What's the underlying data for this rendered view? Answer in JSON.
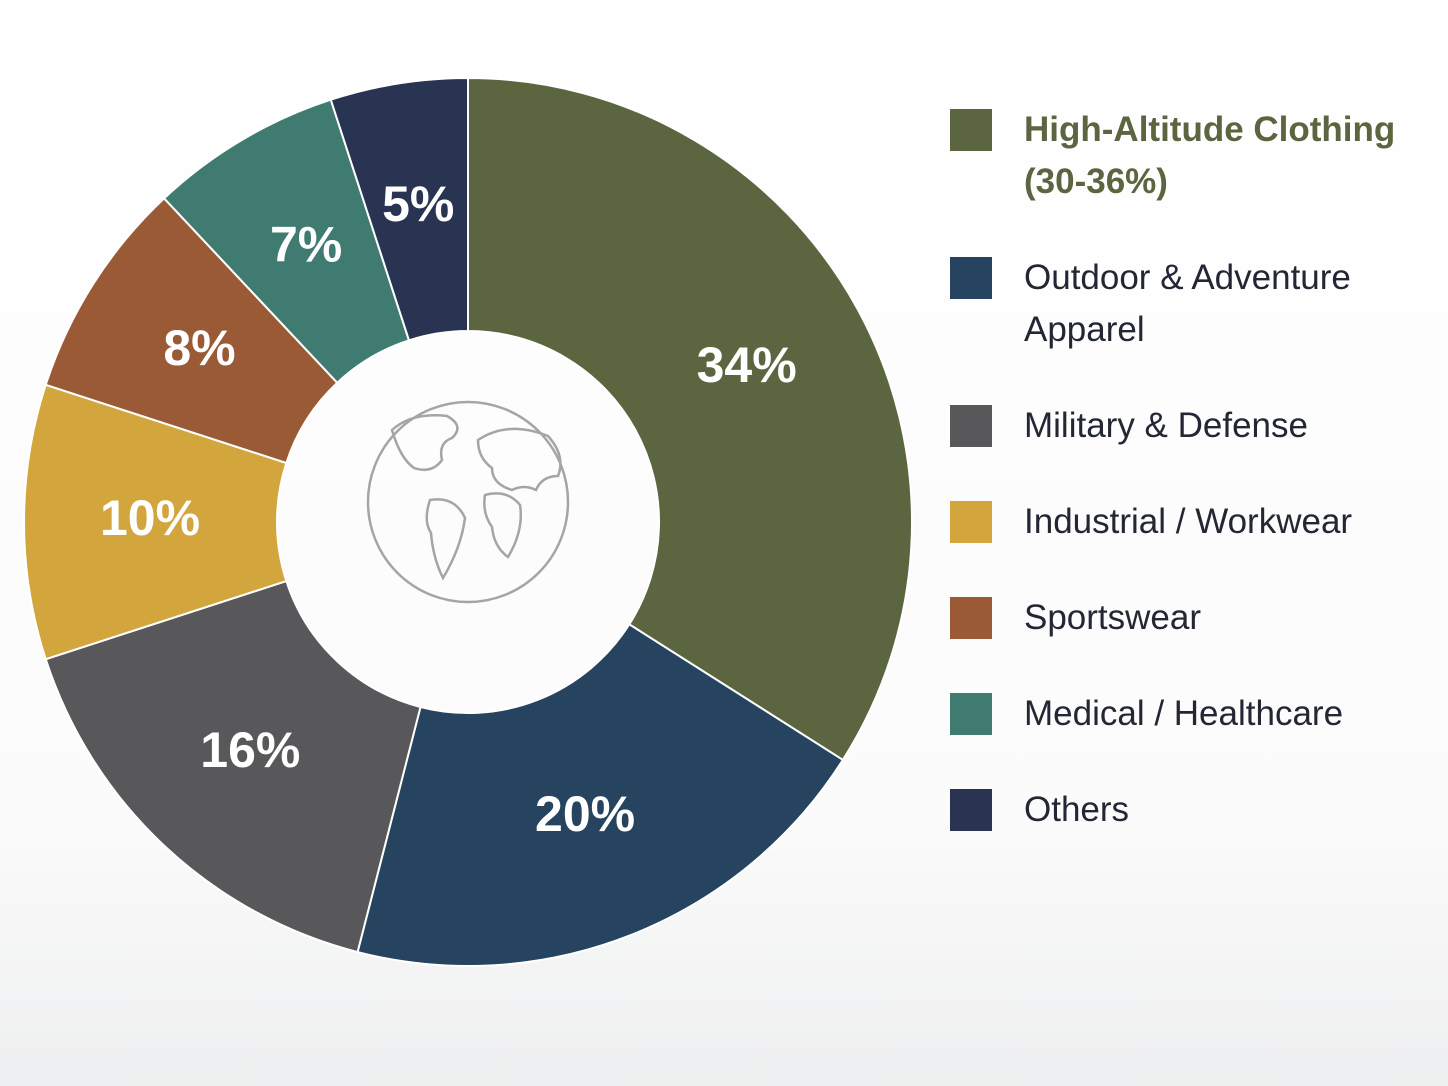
{
  "chart_data": {
    "type": "pie",
    "categories": [
      "High-Altitude Clothing (30-36%)",
      "Outdoor & Adventure Apparel",
      "Military & Defense",
      "Industrial / Workwear",
      "Sportswear",
      "Medical / Healthcare",
      "Others"
    ],
    "values": [
      34,
      20,
      16,
      10,
      8,
      7,
      5
    ],
    "value_labels": [
      "34%",
      "20%",
      "16%",
      "10%",
      "8%",
      "7%",
      "5%"
    ],
    "colors": [
      "#5b6640",
      "#26445f",
      "#58585a",
      "#d3a53d",
      "#9b5a36",
      "#3f7b71",
      "#283452"
    ],
    "legend": "right"
  }
}
